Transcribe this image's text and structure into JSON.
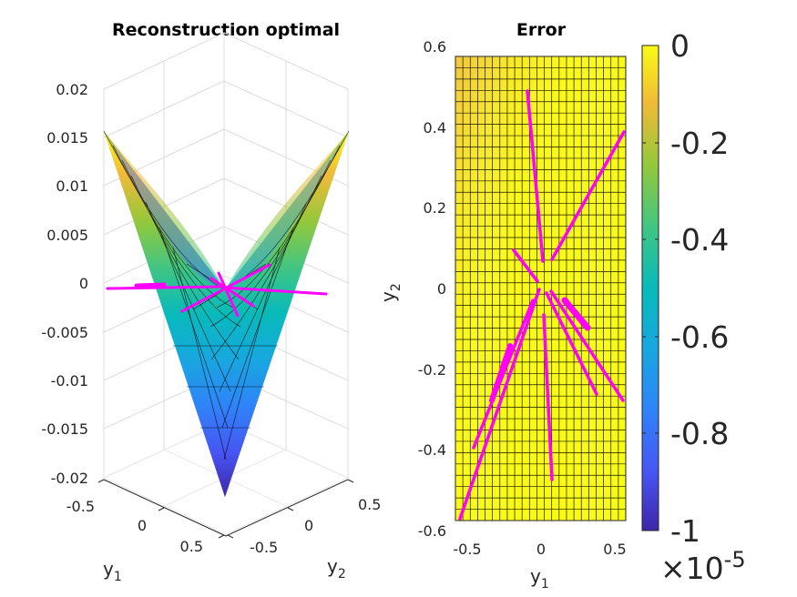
{
  "chart_data": [
    {
      "type": "surface",
      "title": "Reconstruction optimal",
      "xlabel": "y",
      "xlabel_sub": "1",
      "ylabel": "y",
      "ylabel_sub": "2",
      "zlim": [
        -0.02,
        0.02
      ],
      "z_ticks": [
        "0.02",
        "0.015",
        "0.01",
        "0.005",
        "0",
        "-0.005",
        "-0.01",
        "-0.015",
        "-0.02"
      ],
      "x_ticks": [
        "-0.5",
        "0",
        "0.5"
      ],
      "y_ticks": [
        "-0.5",
        "0",
        "0.5"
      ],
      "surface_function": "z = 0.0625 * y1 * y2 (saddle), corners approx ±0.016",
      "overlay_color": "#ff00ff"
    },
    {
      "type": "heatmap",
      "title": "Error",
      "xlabel": "y",
      "xlabel_sub": "1",
      "ylabel": "y",
      "ylabel_sub": "2",
      "xlim": [
        -0.57,
        0.57
      ],
      "ylim": [
        -0.6,
        0.6
      ],
      "x_ticks": [
        "-0.5",
        "0",
        "0.5"
      ],
      "y_ticks": [
        "0.6",
        "0.4",
        "0.2",
        "0",
        "-0.2",
        "-0.4",
        "-0.6"
      ],
      "colorbar": {
        "range": [
          -1,
          0
        ],
        "ticks": [
          "0",
          "-0.2",
          "-0.4",
          "-0.6",
          "-0.8",
          "-1"
        ],
        "multiplier_prefix": "×10",
        "multiplier_exponent": "-5"
      },
      "overlay_color": "#ff00ff"
    }
  ]
}
